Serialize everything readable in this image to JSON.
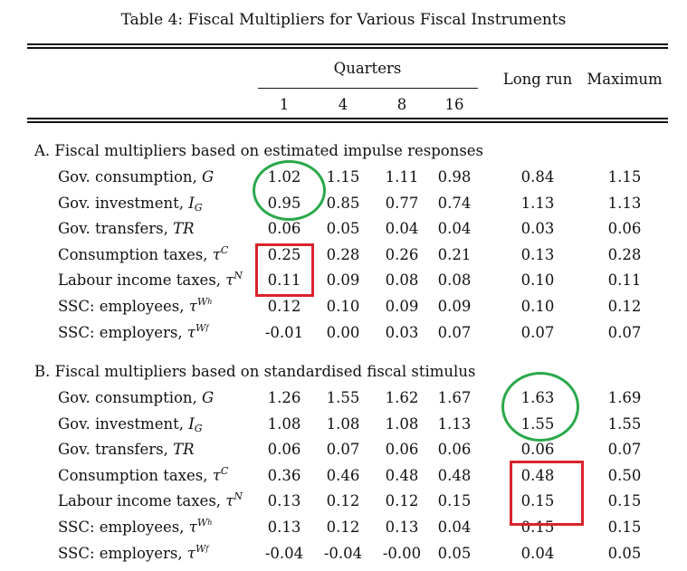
{
  "title": "Table 4: Fiscal Multipliers for Various Fiscal Instruments",
  "header": {
    "quarters_label": "Quarters",
    "quarter_cols": [
      "1",
      "4",
      "8",
      "16"
    ],
    "long_run": "Long run",
    "maximum": "Maximum"
  },
  "sections": [
    {
      "heading": "A.  Fiscal multipliers based on estimated impulse responses",
      "rows": [
        {
          "label": "Gov. consumption, ",
          "sym": "G",
          "sup": "",
          "sub": "",
          "subsub": "",
          "values": [
            "1.02",
            "1.15",
            "1.11",
            "0.98",
            "0.84",
            "1.15"
          ]
        },
        {
          "label": "Gov. investment, ",
          "sym": "I",
          "sup": "",
          "sub": "G",
          "subsub": "",
          "values": [
            "0.95",
            "0.85",
            "0.77",
            "0.74",
            "1.13",
            "1.13"
          ]
        },
        {
          "label": "Gov. transfers, ",
          "sym": "TR",
          "sup": "",
          "sub": "",
          "subsub": "",
          "values": [
            "0.06",
            "0.05",
            "0.04",
            "0.04",
            "0.03",
            "0.06"
          ]
        },
        {
          "label": "Consumption taxes, ",
          "sym": "τ",
          "sup": "C",
          "sub": "",
          "subsub": "",
          "values": [
            "0.25",
            "0.28",
            "0.26",
            "0.21",
            "0.13",
            "0.28"
          ]
        },
        {
          "label": "Labour income taxes, ",
          "sym": "τ",
          "sup": "N",
          "sub": "",
          "subsub": "",
          "values": [
            "0.11",
            "0.09",
            "0.08",
            "0.08",
            "0.10",
            "0.11"
          ]
        },
        {
          "label": "SSC: employees, ",
          "sym": "τ",
          "sup": "W",
          "sub": "",
          "subsub": "h",
          "values": [
            "0.12",
            "0.10",
            "0.09",
            "0.09",
            "0.10",
            "0.12"
          ]
        },
        {
          "label": "SSC: employers, ",
          "sym": "τ",
          "sup": "W",
          "sub": "",
          "subsub": "f",
          "values": [
            "-0.01",
            "0.00",
            "0.03",
            "0.07",
            "0.07",
            "0.07"
          ]
        }
      ]
    },
    {
      "heading": "B. Fiscal multipliers based on standardised fiscal stimulus",
      "rows": [
        {
          "label": "Gov. consumption, ",
          "sym": "G",
          "sup": "",
          "sub": "",
          "subsub": "",
          "values": [
            "1.26",
            "1.55",
            "1.62",
            "1.67",
            "1.63",
            "1.69"
          ]
        },
        {
          "label": "Gov. investment, ",
          "sym": "I",
          "sup": "",
          "sub": "G",
          "subsub": "",
          "values": [
            "1.08",
            "1.08",
            "1.08",
            "1.13",
            "1.55",
            "1.55"
          ]
        },
        {
          "label": "Gov. transfers, ",
          "sym": "TR",
          "sup": "",
          "sub": "",
          "subsub": "",
          "values": [
            "0.06",
            "0.07",
            "0.06",
            "0.06",
            "0.06",
            "0.07"
          ]
        },
        {
          "label": "Consumption taxes, ",
          "sym": "τ",
          "sup": "C",
          "sub": "",
          "subsub": "",
          "values": [
            "0.36",
            "0.46",
            "0.48",
            "0.48",
            "0.48",
            "0.50"
          ]
        },
        {
          "label": "Labour income taxes, ",
          "sym": "τ",
          "sup": "N",
          "sub": "",
          "subsub": "",
          "values": [
            "0.13",
            "0.12",
            "0.12",
            "0.15",
            "0.15",
            "0.15"
          ]
        },
        {
          "label": "SSC: employees, ",
          "sym": "τ",
          "sup": "W",
          "sub": "",
          "subsub": "h",
          "values": [
            "0.13",
            "0.12",
            "0.13",
            "0.04",
            "0.15",
            "0.15"
          ]
        },
        {
          "label": "SSC: employers, ",
          "sym": "τ",
          "sup": "W",
          "sub": "",
          "subsub": "f",
          "values": [
            "-0.04",
            "-0.04",
            "-0.00",
            "0.05",
            "0.04",
            "0.05"
          ]
        }
      ]
    }
  ],
  "annotation_colors": {
    "circle": "#2aa84a",
    "box": "#d9232d"
  }
}
